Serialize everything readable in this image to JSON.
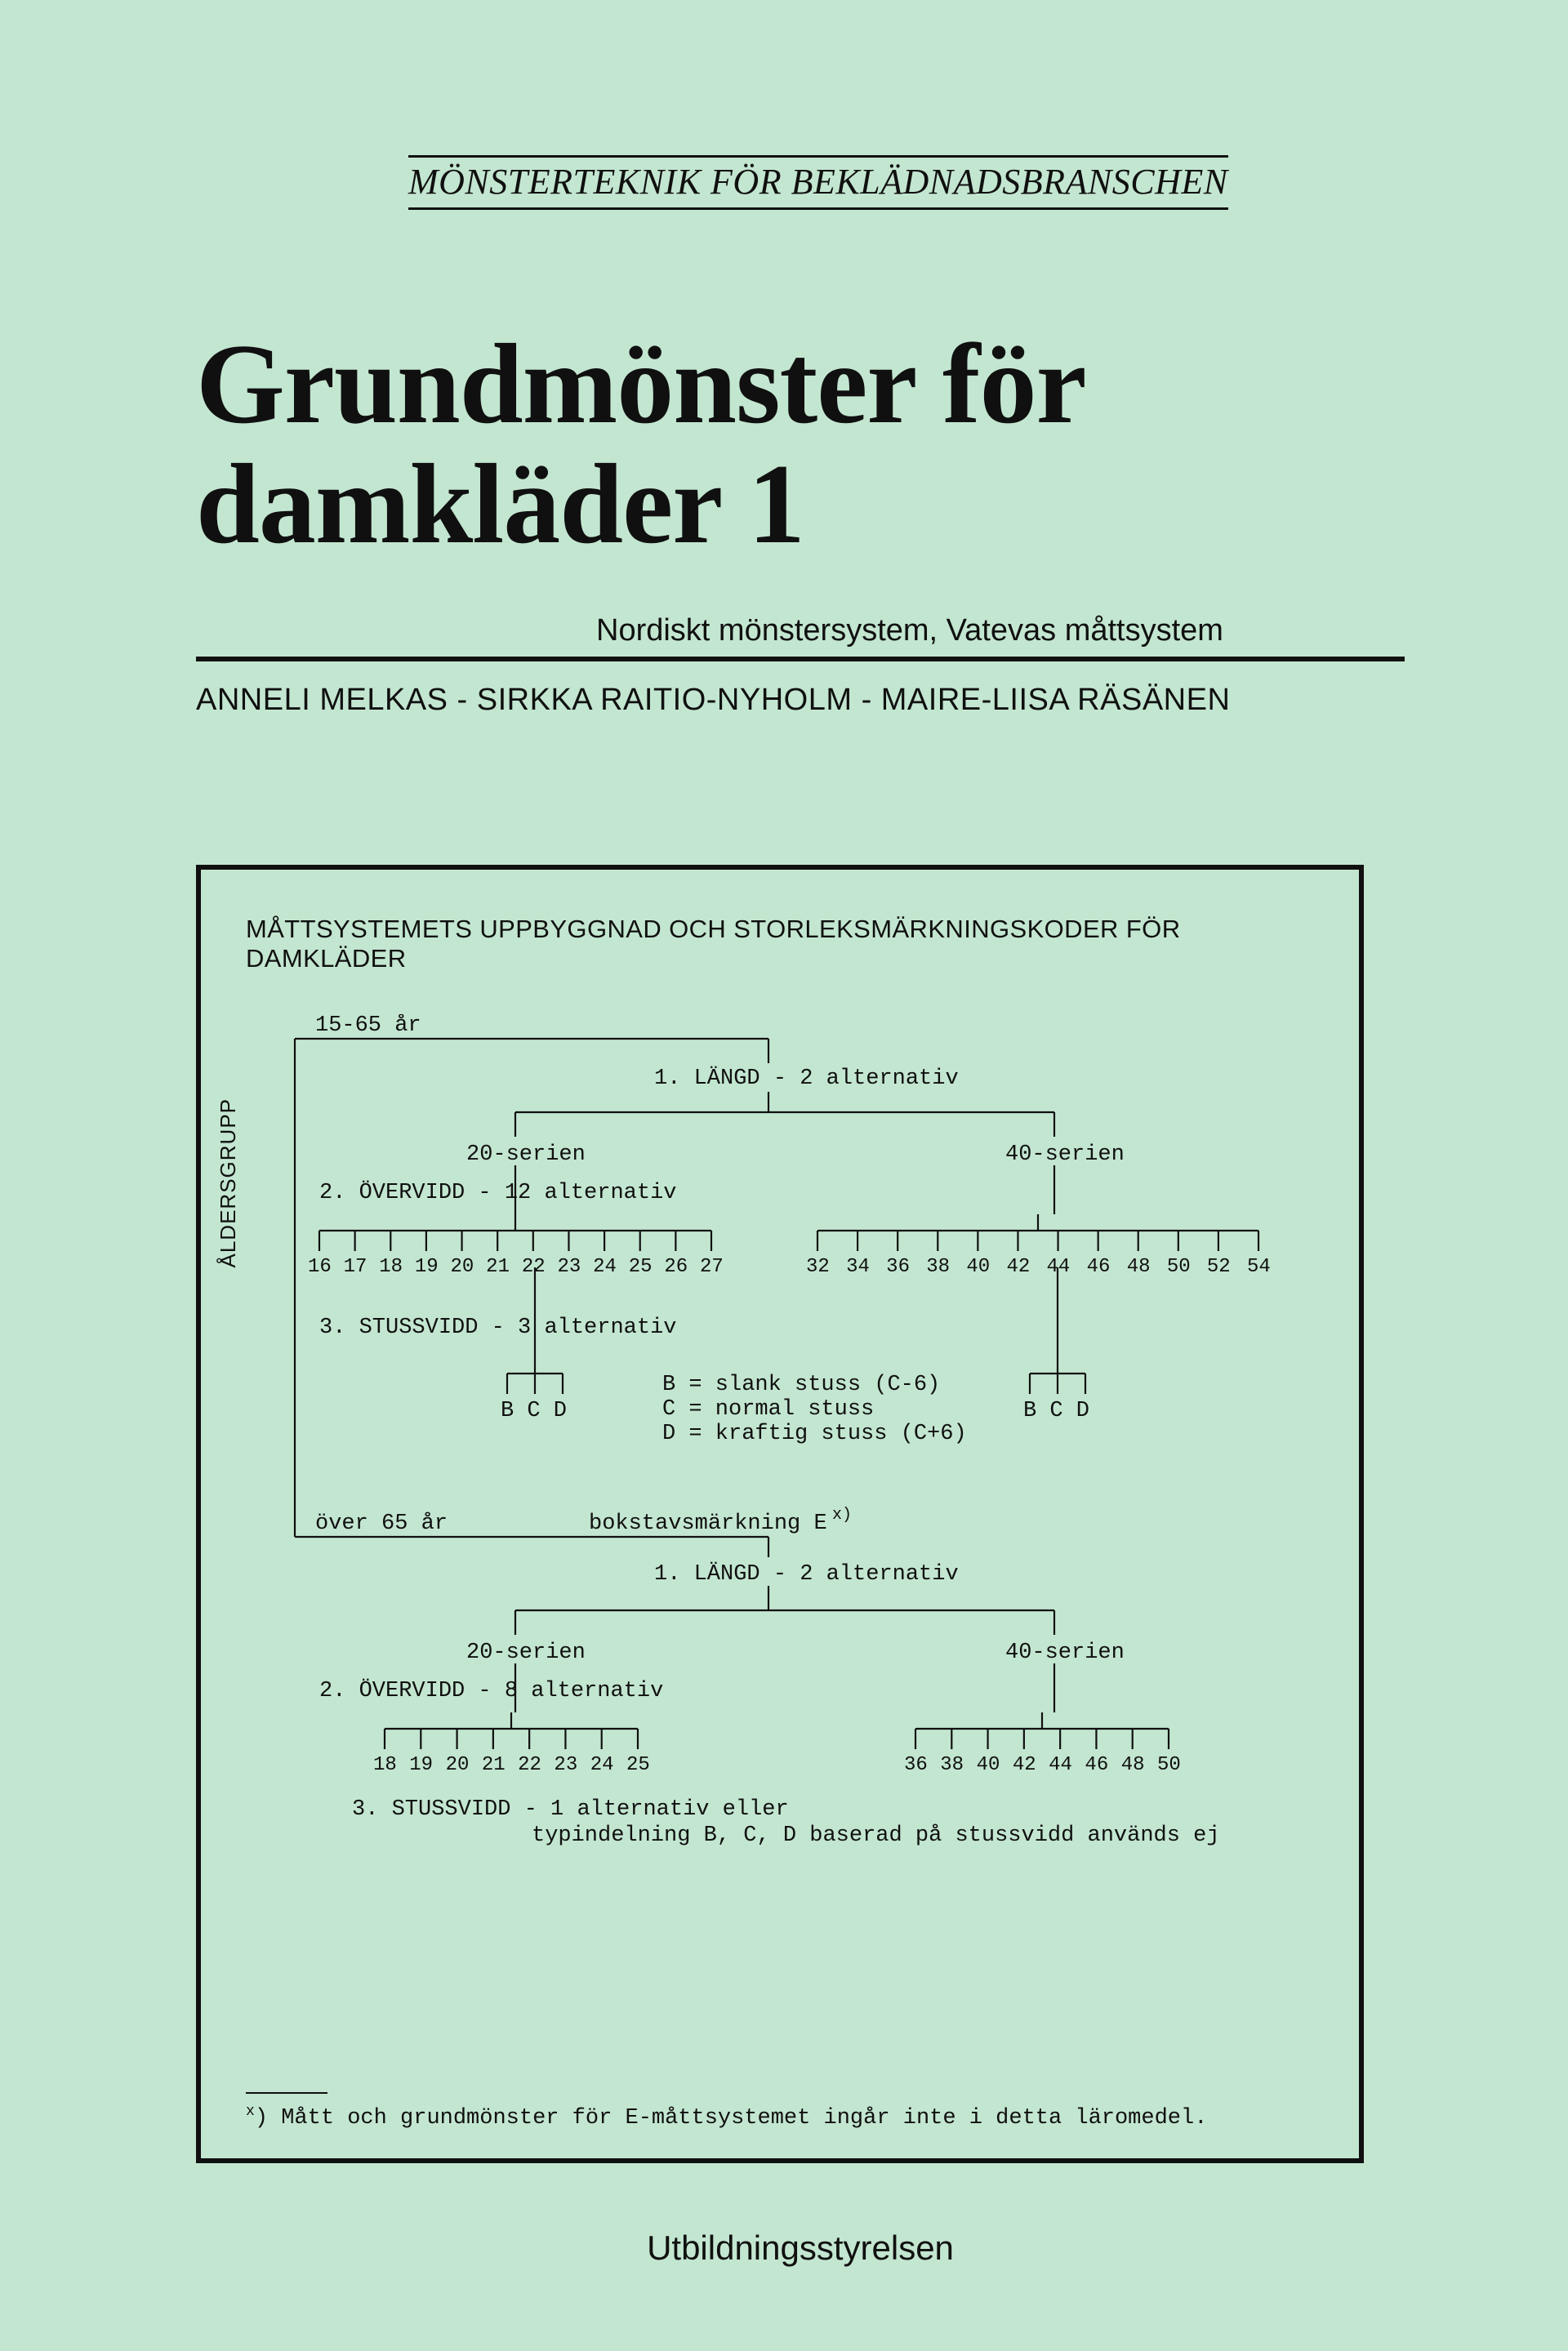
{
  "background_color": "#c3e6d0",
  "text_color": "#101010",
  "series_heading": "MÖNSTERTEKNIK FÖR BEKLÄDNADSBRANSCHEN",
  "main_title_line1": "Grundmönster för",
  "main_title_line2": "damkläder 1",
  "subtitle": "Nordiskt mönstersystem, Vatevas måttsystem",
  "authors": "ANNELI MELKAS - SIRKKA RAITIO-NYHOLM - MAIRE-LIISA RÄSÄNEN",
  "diagram": {
    "heading": "MÅTTSYSTEMETS UPPBYGGNAD OCH STORLEKSMÄRKNINGSKODER FÖR DAMKLÄDER",
    "age_group_vert": "ÅLDERSGRUPP",
    "age_top": "15-65 år",
    "age_bottom": "över 65 år",
    "step1": "1. LÄNGD - 2 alternativ",
    "series20": "20-serien",
    "series40": "40-serien",
    "step2_top": "2. ÖVERVIDD - 12 alternativ",
    "sizes20_top": [
      "16",
      "17",
      "18",
      "19",
      "20",
      "21",
      "22",
      "23",
      "24",
      "25",
      "26",
      "27"
    ],
    "sizes40_top": [
      "32",
      "34",
      "36",
      "38",
      "40",
      "42",
      "44",
      "46",
      "48",
      "50",
      "52",
      "54"
    ],
    "step3_top": "3. STUSSVIDD - 3 alternativ",
    "bcd": [
      "B",
      "C",
      "D"
    ],
    "legend_b": "B = slank stuss (C-6)",
    "legend_c": "C = normal stuss",
    "legend_d": "D = kraftig stuss (C+6)",
    "bokstav": "bokstavsmärkning E",
    "bokstav_sup": "x)",
    "step1b": "1. LÄNGD - 2 alternativ",
    "step2_bottom": "2. ÖVERVIDD - 8 alternativ",
    "sizes20_bottom": [
      "18",
      "19",
      "20",
      "21",
      "22",
      "23",
      "24",
      "25"
    ],
    "sizes40_bottom": [
      "36",
      "38",
      "40",
      "42",
      "44",
      "46",
      "48",
      "50"
    ],
    "step3_bottom_l1": "3. STUSSVIDD - 1 alternativ eller",
    "step3_bottom_l2": "typindelning B, C, D baserad på stussvidd används ej",
    "footnote": ") Mått och grundmönster för E-måttsystemet ingår inte i detta läromedel.",
    "footnote_sup": "x"
  },
  "publisher": "Utbildningsstyrelsen"
}
